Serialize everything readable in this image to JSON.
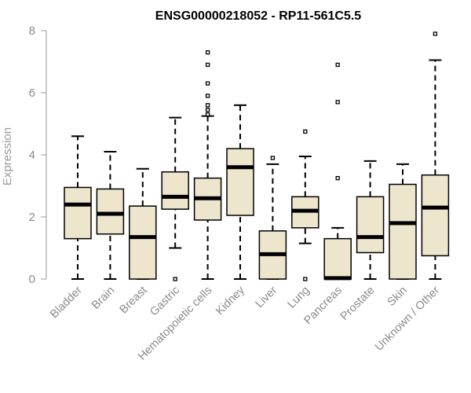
{
  "chart_data": {
    "type": "boxplot",
    "title": "ENSG00000218052 - RP11-561C5.5",
    "ylabel": "Expression",
    "xlabel": "",
    "ylim": [
      0,
      8
    ],
    "yticks": [
      0,
      2,
      4,
      6,
      8
    ],
    "grid": false,
    "legend": "none",
    "colors": {
      "box_fill": "#ede6cd",
      "stroke": "#000000",
      "axis": "#9a9a9a"
    },
    "categories": [
      "Bladder",
      "Brain",
      "Breast",
      "Gastric",
      "Hematopoietic cells",
      "Kidney",
      "Liver",
      "Lung",
      "Pancreas",
      "Prostate",
      "Skin",
      "Unknown / Other"
    ],
    "boxes": [
      {
        "name": "Bladder",
        "min": 0,
        "q1": 1.3,
        "median": 2.4,
        "q3": 2.95,
        "max": 4.6,
        "outliers": []
      },
      {
        "name": "Brain",
        "min": 0,
        "q1": 1.45,
        "median": 2.1,
        "q3": 2.9,
        "max": 4.1,
        "outliers": []
      },
      {
        "name": "Breast",
        "min": 0,
        "q1": 0,
        "median": 1.35,
        "q3": 2.35,
        "max": 3.55,
        "outliers": []
      },
      {
        "name": "Gastric",
        "min": 1.0,
        "q1": 2.25,
        "median": 2.65,
        "q3": 3.45,
        "max": 5.2,
        "outliers": [
          0
        ]
      },
      {
        "name": "Hematopoietic cells",
        "min": 0,
        "q1": 1.9,
        "median": 2.6,
        "q3": 3.25,
        "max": 5.25,
        "outliers": [
          5.3,
          5.45,
          5.6,
          5.9,
          6.3,
          6.9,
          7.3
        ]
      },
      {
        "name": "Kidney",
        "min": 0,
        "q1": 2.05,
        "median": 3.6,
        "q3": 4.2,
        "max": 5.6,
        "outliers": []
      },
      {
        "name": "Liver",
        "min": 0,
        "q1": 0,
        "median": 0.8,
        "q3": 1.55,
        "max": 3.7,
        "outliers": [
          3.9
        ]
      },
      {
        "name": "Lung",
        "min": 1.15,
        "q1": 1.65,
        "median": 2.2,
        "q3": 2.65,
        "max": 3.95,
        "outliers": [
          4.75,
          0
        ]
      },
      {
        "name": "Pancreas",
        "min": 0,
        "q1": 0,
        "median": 0.03,
        "q3": 1.3,
        "max": 1.65,
        "outliers": [
          3.25,
          5.7,
          6.9
        ]
      },
      {
        "name": "Prostate",
        "min": 0,
        "q1": 0.85,
        "median": 1.35,
        "q3": 2.65,
        "max": 3.8,
        "outliers": []
      },
      {
        "name": "Skin",
        "min": 0,
        "q1": 0,
        "median": 1.8,
        "q3": 3.05,
        "max": 3.7,
        "outliers": []
      },
      {
        "name": "Unknown / Other",
        "min": 0,
        "q1": 0.75,
        "median": 2.3,
        "q3": 3.35,
        "max": 7.05,
        "outliers": [
          7.9
        ]
      }
    ]
  }
}
